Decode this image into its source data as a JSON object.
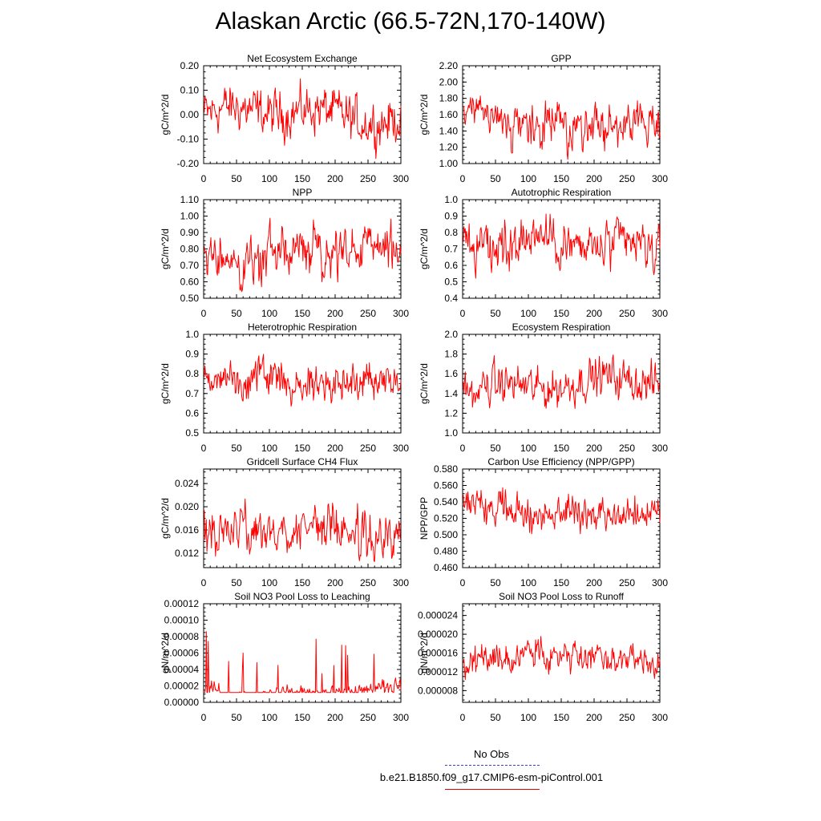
{
  "title": "Alaskan Arctic (66.5-72N,170-140W)",
  "colors": {
    "series": "#ff0000",
    "obs": "#3b3bd6",
    "axis": "#000000"
  },
  "legend": {
    "obs_label": "No Obs",
    "model_label": "b.e21.B1850.f09_g17.CMIP6-esm-piControl.001"
  },
  "chart_data": [
    {
      "type": "line",
      "title": "Net Ecosystem Exchange",
      "ylabel": "gC/m^2/d",
      "xlim": [
        0,
        300
      ],
      "xticks": [
        0,
        50,
        100,
        150,
        200,
        250,
        300
      ],
      "ylim": [
        -0.2,
        0.2
      ],
      "yticks": [
        -0.2,
        -0.1,
        0.0,
        0.1,
        0.2
      ],
      "ytick_labels": [
        "-0.20",
        "-0.10",
        "0.00",
        "0.10",
        "0.20"
      ],
      "series": [
        {
          "name": "b.e21.B1850.f09_g17.CMIP6-esm-piControl.001",
          "mean": 0.0,
          "amplitude": 0.07,
          "x": [],
          "values": []
        }
      ]
    },
    {
      "type": "line",
      "title": "GPP",
      "ylabel": "gC/m^2/d",
      "xlim": [
        0,
        300
      ],
      "xticks": [
        0,
        50,
        100,
        150,
        200,
        250,
        300
      ],
      "ylim": [
        1.0,
        2.2
      ],
      "yticks": [
        1.0,
        1.2,
        1.4,
        1.6,
        1.8,
        2.0,
        2.2
      ],
      "ytick_labels": [
        "1.00",
        "1.20",
        "1.40",
        "1.60",
        "1.80",
        "2.00",
        "2.20"
      ],
      "series": [
        {
          "name": "b.e21.B1850.f09_g17.CMIP6-esm-piControl.001",
          "mean": 1.5,
          "amplitude": 0.2,
          "x": [],
          "values": []
        }
      ]
    },
    {
      "type": "line",
      "title": "NPP",
      "ylabel": "gC/m^2/d",
      "xlim": [
        0,
        300
      ],
      "xticks": [
        0,
        50,
        100,
        150,
        200,
        250,
        300
      ],
      "ylim": [
        0.5,
        1.1
      ],
      "yticks": [
        0.5,
        0.6,
        0.7,
        0.8,
        0.9,
        1.0,
        1.1
      ],
      "ytick_labels": [
        "0.50",
        "0.60",
        "0.70",
        "0.80",
        "0.90",
        "1.00",
        "1.10"
      ],
      "series": [
        {
          "name": "b.e21.B1850.f09_g17.CMIP6-esm-piControl.001",
          "mean": 0.77,
          "amplitude": 0.11,
          "x": [],
          "values": []
        }
      ]
    },
    {
      "type": "line",
      "title": "Autotrophic Respiration",
      "ylabel": "gC/m^2/d",
      "xlim": [
        0,
        300
      ],
      "xticks": [
        0,
        50,
        100,
        150,
        200,
        250,
        300
      ],
      "ylim": [
        0.4,
        1.0
      ],
      "yticks": [
        0.4,
        0.5,
        0.6,
        0.7,
        0.8,
        0.9,
        1.0
      ],
      "ytick_labels": [
        "0.4",
        "0.5",
        "0.6",
        "0.7",
        "0.8",
        "0.9",
        "1.0"
      ],
      "series": [
        {
          "name": "b.e21.B1850.f09_g17.CMIP6-esm-piControl.001",
          "mean": 0.72,
          "amplitude": 0.11,
          "x": [],
          "values": []
        }
      ]
    },
    {
      "type": "line",
      "title": "Heterotrophic Respiration",
      "ylabel": "gC/m^2/d",
      "xlim": [
        0,
        300
      ],
      "xticks": [
        0,
        50,
        100,
        150,
        200,
        250,
        300
      ],
      "ylim": [
        0.5,
        1.0
      ],
      "yticks": [
        0.5,
        0.6,
        0.7,
        0.8,
        0.9,
        1.0
      ],
      "ytick_labels": [
        "0.5",
        "0.6",
        "0.7",
        "0.8",
        "0.9",
        "1.0"
      ],
      "series": [
        {
          "name": "b.e21.B1850.f09_g17.CMIP6-esm-piControl.001",
          "mean": 0.77,
          "amplitude": 0.07,
          "x": [],
          "values": []
        }
      ]
    },
    {
      "type": "line",
      "title": "Ecosystem Respiration",
      "ylabel": "gC/m^2/d",
      "xlim": [
        0,
        300
      ],
      "xticks": [
        0,
        50,
        100,
        150,
        200,
        250,
        300
      ],
      "ylim": [
        1.0,
        2.0
      ],
      "yticks": [
        1.0,
        1.2,
        1.4,
        1.6,
        1.8,
        2.0
      ],
      "ytick_labels": [
        "1.0",
        "1.2",
        "1.4",
        "1.6",
        "1.8",
        "2.0"
      ],
      "series": [
        {
          "name": "b.e21.B1850.f09_g17.CMIP6-esm-piControl.001",
          "mean": 1.5,
          "amplitude": 0.15,
          "x": [],
          "values": []
        }
      ]
    },
    {
      "type": "line",
      "title": "Gridcell Surface CH4 Flux",
      "ylabel": "gC/m^2/d",
      "xlim": [
        0,
        300
      ],
      "xticks": [
        0,
        50,
        100,
        150,
        200,
        250,
        300
      ],
      "ylim": [
        0.0095,
        0.0265
      ],
      "yticks": [
        0.012,
        0.016,
        0.02,
        0.024
      ],
      "ytick_labels": [
        "0.012",
        "0.016",
        "0.020",
        "0.024"
      ],
      "series": [
        {
          "name": "b.e21.B1850.f09_g17.CMIP6-esm-piControl.001",
          "mean": 0.0155,
          "amplitude": 0.0028,
          "x": [],
          "values": []
        }
      ]
    },
    {
      "type": "line",
      "title": "Carbon Use Efficiency (NPP/GPP)",
      "ylabel": "NPP/GPP",
      "xlim": [
        0,
        300
      ],
      "xticks": [
        0,
        50,
        100,
        150,
        200,
        250,
        300
      ],
      "ylim": [
        0.46,
        0.58
      ],
      "yticks": [
        0.46,
        0.48,
        0.5,
        0.52,
        0.54,
        0.56,
        0.58
      ],
      "ytick_labels": [
        "0.460",
        "0.480",
        "0.500",
        "0.520",
        "0.540",
        "0.560",
        "0.580"
      ],
      "series": [
        {
          "name": "b.e21.B1850.f09_g17.CMIP6-esm-piControl.001",
          "mean": 0.528,
          "amplitude": 0.016,
          "x": [],
          "values": []
        }
      ]
    },
    {
      "type": "line",
      "title": "Soil NO3 Pool Loss to Leaching",
      "ylabel": "gN/m^2/d",
      "xlim": [
        0,
        300
      ],
      "xticks": [
        0,
        50,
        100,
        150,
        200,
        250,
        300
      ],
      "ylim": [
        0.0,
        0.00012
      ],
      "yticks": [
        0.0,
        2e-05,
        4e-05,
        6e-05,
        8e-05,
        0.0001,
        0.00012
      ],
      "ytick_labels": [
        "0.00000",
        "0.00002",
        "0.00004",
        "0.00006",
        "0.00008",
        "0.00010",
        "0.00012"
      ],
      "series": [
        {
          "name": "b.e21.B1850.f09_g17.CMIP6-esm-piControl.001",
          "mean": 1.2e-05,
          "amplitude": 1.2e-05,
          "x": [],
          "values": []
        }
      ]
    },
    {
      "type": "line",
      "title": "Soil NO3 Pool Loss to Runoff",
      "ylabel": "gN/m^2/d",
      "xlim": [
        0,
        300
      ],
      "xticks": [
        0,
        50,
        100,
        150,
        200,
        250,
        300
      ],
      "ylim": [
        5.5e-06,
        2.65e-05
      ],
      "yticks": [
        8e-06,
        1.2e-05,
        1.6e-05,
        2e-05,
        2.4e-05
      ],
      "ytick_labels": [
        "0.000008",
        "0.000012",
        "0.000016",
        "0.000020",
        "0.000024"
      ],
      "series": [
        {
          "name": "b.e21.B1850.f09_g17.CMIP6-esm-piControl.001",
          "mean": 1.48e-05,
          "amplitude": 2.5e-06,
          "x": [],
          "values": []
        }
      ]
    }
  ]
}
